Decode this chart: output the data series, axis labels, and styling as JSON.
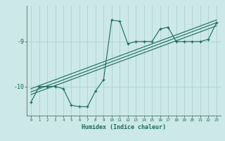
{
  "xlabel": "Humidex (Indice chaleur)",
  "background_color": "#cce8e8",
  "grid_color": "#aacccc",
  "line_color": "#1a6b5a",
  "x_ticks": [
    0,
    1,
    2,
    3,
    4,
    5,
    6,
    7,
    8,
    9,
    10,
    11,
    12,
    13,
    14,
    15,
    16,
    17,
    18,
    19,
    20,
    21,
    22,
    23
  ],
  "y_ticks": [
    -9,
    -10
  ],
  "ylim": [
    -10.65,
    -8.2
  ],
  "xlim": [
    -0.5,
    23.5
  ],
  "series": {
    "jagged": [
      [
        0,
        -10.35
      ],
      [
        1,
        -10.0
      ],
      [
        2,
        -10.0
      ],
      [
        3,
        -10.0
      ],
      [
        4,
        -10.05
      ],
      [
        5,
        -10.42
      ],
      [
        6,
        -10.45
      ],
      [
        7,
        -10.45
      ],
      [
        8,
        -10.1
      ],
      [
        9,
        -9.85
      ],
      [
        10,
        -8.52
      ],
      [
        11,
        -8.55
      ],
      [
        12,
        -9.05
      ],
      [
        13,
        -9.0
      ],
      [
        14,
        -9.0
      ],
      [
        15,
        -9.0
      ],
      [
        16,
        -8.72
      ],
      [
        17,
        -8.68
      ],
      [
        18,
        -9.0
      ],
      [
        19,
        -9.0
      ],
      [
        20,
        -9.0
      ],
      [
        21,
        -9.0
      ],
      [
        22,
        -8.95
      ],
      [
        23,
        -8.58
      ]
    ],
    "linear1": [
      [
        0,
        -10.05
      ],
      [
        23,
        -8.52
      ]
    ],
    "linear2": [
      [
        0,
        -10.12
      ],
      [
        23,
        -8.58
      ]
    ],
    "linear3": [
      [
        0,
        -10.18
      ],
      [
        23,
        -8.65
      ]
    ]
  }
}
